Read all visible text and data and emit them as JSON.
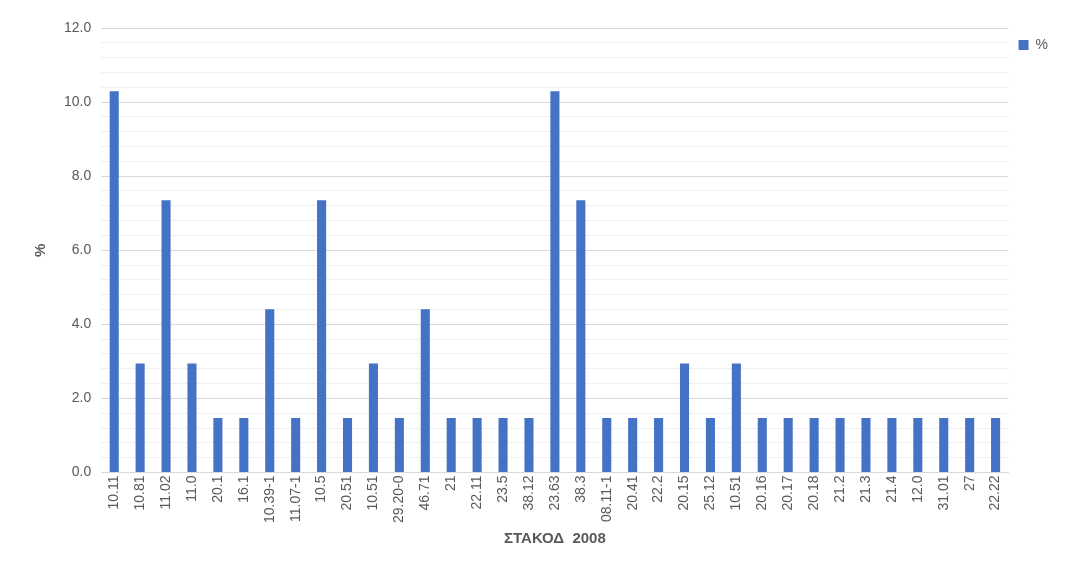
{
  "chart_data": {
    "type": "bar",
    "xlabel": "ΣΤΑΚΟΔ  2008",
    "ylabel": "%",
    "categories": [
      "10.11",
      "10.81",
      "11.02",
      "11.0",
      "20.1",
      "16.1",
      "10.39-1",
      "11.07-1",
      "10.5",
      "20.51",
      "10.51",
      "29.20-0",
      "46.71",
      "21",
      "22.11",
      "23.5",
      "38.12",
      "23.63",
      "38.3",
      "08.11-1",
      "20.41",
      "22.2",
      "20.15",
      "25.12",
      "10.51",
      "20.16",
      "20.17",
      "20.18",
      "21.2",
      "21.3",
      "21.4",
      "12.0",
      "31.01",
      "27",
      "22.22"
    ],
    "series": [
      {
        "name": "%",
        "color": "#4472c4",
        "values": [
          10.29,
          2.94,
          7.35,
          2.94,
          1.47,
          1.47,
          4.41,
          1.47,
          7.35,
          1.47,
          2.94,
          1.47,
          4.41,
          1.47,
          1.47,
          1.47,
          1.47,
          10.29,
          7.35,
          1.47,
          1.47,
          1.47,
          2.94,
          1.47,
          2.94,
          1.47,
          1.47,
          1.47,
          1.47,
          1.47,
          1.47,
          1.47,
          1.47,
          1.47,
          1.47
        ]
      }
    ],
    "ylim": [
      0,
      12
    ],
    "yticks": [
      {
        "value": 0,
        "label": "0.0"
      },
      {
        "value": 0.4,
        "label": null
      },
      {
        "value": 0.8,
        "label": null
      },
      {
        "value": 1.2,
        "label": null
      },
      {
        "value": 1.6,
        "label": null
      },
      {
        "value": 2,
        "label": "2.0"
      },
      {
        "value": 2.4,
        "label": null
      },
      {
        "value": 2.8,
        "label": null
      },
      {
        "value": 3.2,
        "label": null
      },
      {
        "value": 3.6,
        "label": null
      },
      {
        "value": 4,
        "label": "4.0"
      },
      {
        "value": 4.4,
        "label": null
      },
      {
        "value": 4.8,
        "label": null
      },
      {
        "value": 5.2,
        "label": null
      },
      {
        "value": 5.6,
        "label": null
      },
      {
        "value": 6,
        "label": "6.0"
      },
      {
        "value": 6.4,
        "label": null
      },
      {
        "value": 6.8,
        "label": null
      },
      {
        "value": 7.2,
        "label": null
      },
      {
        "value": 7.6,
        "label": null
      },
      {
        "value": 8,
        "label": "8.0"
      },
      {
        "value": 8.4,
        "label": null
      },
      {
        "value": 8.8,
        "label": null
      },
      {
        "value": 9.2,
        "label": null
      },
      {
        "value": 9.6,
        "label": null
      },
      {
        "value": 10,
        "label": "10.0"
      },
      {
        "value": 10.4,
        "label": null
      },
      {
        "value": 10.8,
        "label": null
      },
      {
        "value": 11.2,
        "label": null
      },
      {
        "value": 11.6,
        "label": null
      },
      {
        "value": 12,
        "label": "12.0"
      }
    ],
    "grid": "y",
    "legend": "right"
  }
}
